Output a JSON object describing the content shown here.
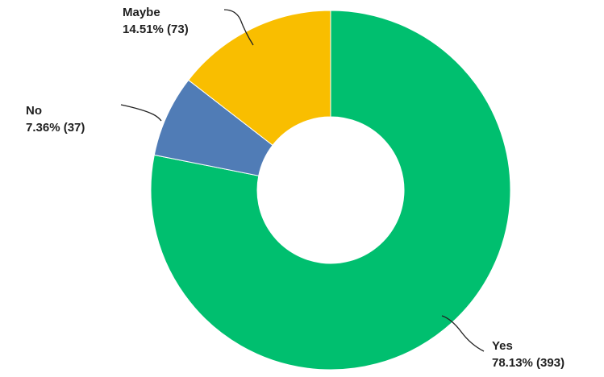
{
  "chart_data": {
    "type": "pie",
    "variant": "donut",
    "title": "",
    "legend": "none",
    "slices": [
      {
        "name": "Yes",
        "percent_label": "78.13% (393)",
        "percent": 78.13,
        "count": 393,
        "color": "#00bf6f"
      },
      {
        "name": "No",
        "percent_label": "7.36% (37)",
        "percent": 7.36,
        "count": 37,
        "color": "#507cb6"
      },
      {
        "name": "Maybe",
        "percent_label": "14.51% (73)",
        "percent": 14.51,
        "count": 73,
        "color": "#f9be00"
      }
    ]
  }
}
